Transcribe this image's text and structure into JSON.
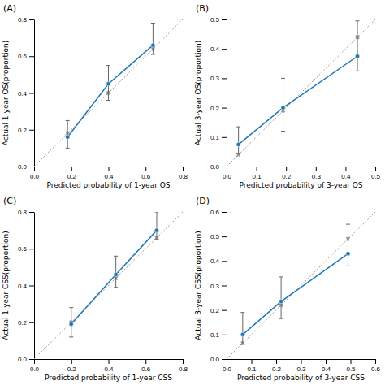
{
  "chart_data": [
    {
      "type": "line",
      "title": "(A)",
      "xlabel": "Predicted probability of 1-year OS",
      "ylabel": "Actual 1-year OS(proportion)",
      "x": [
        0.18,
        0.4,
        0.64
      ],
      "values": [
        0.16,
        0.45,
        0.66
      ],
      "error_low": [
        0.06,
        0.09,
        0.05
      ],
      "error_high": [
        0.09,
        0.1,
        0.12
      ],
      "marker": "circle",
      "xlim": [
        0.0,
        0.8
      ],
      "ylim": [
        0.0,
        0.8
      ],
      "xticks": [
        {
          "value": 0.0,
          "label": "0.0"
        },
        0.2,
        0.4,
        0.6,
        0.8
      ],
      "yticks": [
        {
          "value": 0.0,
          "label": "0.0"
        },
        0.2,
        0.4,
        0.6,
        0.8
      ]
    },
    {
      "type": "line",
      "title": "(B)",
      "xlabel": "Predicted probability of 3-year OS",
      "ylabel": "Actual 3-year OS(proportion)",
      "x": [
        0.04,
        0.19,
        0.44
      ],
      "values": [
        0.075,
        0.2,
        0.375
      ],
      "error_low": [
        0.03,
        0.08,
        0.05
      ],
      "error_high": [
        0.06,
        0.1,
        0.12
      ],
      "marker": "circle",
      "xlim": [
        0.0,
        0.5
      ],
      "ylim": [
        0.0,
        0.5
      ],
      "xticks": [
        {
          "value": 0.0,
          "label": "0.0"
        },
        0.1,
        0.2,
        0.3,
        0.4,
        0.5
      ],
      "yticks": [
        {
          "value": 0.0,
          "label": "0.0"
        },
        0.1,
        0.2,
        0.3,
        0.4,
        0.5
      ]
    },
    {
      "type": "line",
      "title": "(C)",
      "xlabel": "Predicted probability of 1-year CSS",
      "ylabel": "Actual 1-year CSS(proportion)",
      "x": [
        0.2,
        0.44,
        0.66
      ],
      "values": [
        0.19,
        0.46,
        0.7
      ],
      "error_low": [
        0.07,
        0.07,
        0.05
      ],
      "error_high": [
        0.09,
        0.1,
        0.1
      ],
      "marker": "circle",
      "xlim": [
        0.0,
        0.8
      ],
      "ylim": [
        0.0,
        0.8
      ],
      "xticks": [
        {
          "value": 0.0,
          "label": "0.0"
        },
        0.2,
        0.4,
        0.6,
        0.8
      ],
      "yticks": [
        {
          "value": 0.0,
          "label": "0.0"
        },
        0.2,
        0.4,
        0.6,
        0.8
      ]
    },
    {
      "type": "line",
      "title": "(D)",
      "xlabel": "Predicted probability of 3-year CSS",
      "ylabel": "Actual 3-year CSS(proportion)",
      "x": [
        0.065,
        0.22,
        0.49
      ],
      "values": [
        0.1,
        0.235,
        0.43
      ],
      "error_low": [
        0.04,
        0.07,
        0.05
      ],
      "error_high": [
        0.09,
        0.1,
        0.12
      ],
      "marker": "circle",
      "xlim": [
        0.0,
        0.6
      ],
      "ylim": [
        0.0,
        0.6
      ],
      "xticks": [
        {
          "value": 0.0,
          "label": "0.0"
        },
        0.1,
        0.2,
        0.3,
        0.4,
        0.5,
        0.6
      ],
      "yticks": [
        {
          "value": 0.0,
          "label": "0.0"
        },
        0.1,
        0.2,
        0.3,
        0.4,
        0.5,
        0.6
      ]
    }
  ]
}
